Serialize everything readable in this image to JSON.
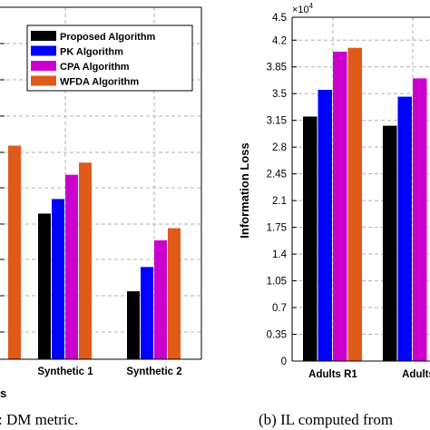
{
  "colors": {
    "proposed": "#000000",
    "pk": "#0000ff",
    "cpa": "#cc00cc",
    "wfda": "#e05a1a"
  },
  "legend": {
    "entries": [
      "Proposed Algorithm",
      "PK Algorithm",
      "CPA Algorithm",
      "WFDA Algorithm"
    ]
  },
  "captions": {
    "left": ": DM metric.",
    "right": "(b) IL computed from"
  },
  "left_axis_fragment": "s",
  "chart_data": [
    {
      "type": "bar",
      "visible_categories": [
        "",
        "Synthetic 1",
        "Synthetic 2"
      ],
      "series": [
        {
          "name": "Proposed Algorithm",
          "values": [
            null,
            0.6,
            0.28
          ]
        },
        {
          "name": "PK Algorithm",
          "values": [
            null,
            0.66,
            0.38
          ]
        },
        {
          "name": "CPA Algorithm",
          "values": [
            null,
            0.76,
            0.49
          ]
        },
        {
          "name": "WFDA Algorithm",
          "values": [
            0.88,
            0.81,
            0.54
          ]
        }
      ],
      "ylim": [
        0,
        1.45
      ],
      "grid": true,
      "legend_position": "top-left"
    },
    {
      "type": "bar",
      "categories": [
        "Adults R1",
        "Adults"
      ],
      "series": [
        {
          "name": "Proposed Algorithm",
          "values": [
            3.2,
            3.08
          ]
        },
        {
          "name": "PK Algorithm",
          "values": [
            3.55,
            3.46
          ]
        },
        {
          "name": "CPA Algorithm",
          "values": [
            4.05,
            3.7
          ]
        },
        {
          "name": "WFDA Algorithm",
          "values": [
            4.1,
            null
          ]
        }
      ],
      "ylabel": "Information Loss",
      "y_multiplier": "×10",
      "y_multiplier_exp": "4",
      "yticks": [
        "0",
        "0.35",
        "0.7",
        "1.05",
        "1.4",
        "1.75",
        "2.1",
        "2.45",
        "2.8",
        "3.15",
        "3.5",
        "3.85",
        "4.2",
        "4.5"
      ],
      "ylim": [
        0,
        4.5
      ],
      "grid": true
    }
  ]
}
